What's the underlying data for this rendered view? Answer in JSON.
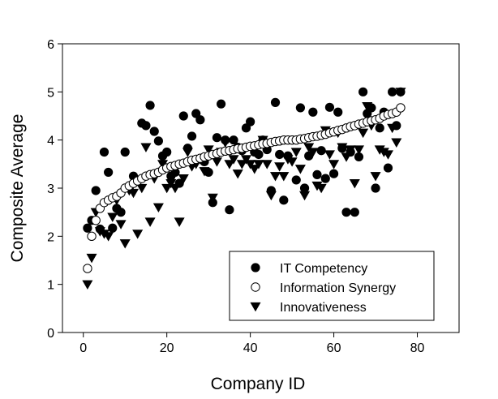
{
  "chart_data": {
    "type": "scatter",
    "title": "",
    "xlabel": "Company ID",
    "ylabel": "Composite Average",
    "xlim": [
      -5,
      90
    ],
    "ylim": [
      0,
      6
    ],
    "x_ticks": [
      0,
      20,
      40,
      60,
      80
    ],
    "y_ticks": [
      0,
      1,
      2,
      3,
      4,
      5,
      6
    ],
    "grid": false,
    "legend_position": "bottom-right",
    "series": [
      {
        "name": "IT Competency",
        "marker": "filled-circle",
        "points": [
          [
            1,
            2.17
          ],
          [
            2,
            2.33
          ],
          [
            3,
            2.95
          ],
          [
            4,
            2.15
          ],
          [
            5,
            3.75
          ],
          [
            6,
            3.33
          ],
          [
            7,
            2.17
          ],
          [
            8,
            2.58
          ],
          [
            9,
            2.5
          ],
          [
            10,
            3.75
          ],
          [
            11,
            3.0
          ],
          [
            12,
            3.25
          ],
          [
            13,
            3.17
          ],
          [
            14,
            4.35
          ],
          [
            15,
            4.3
          ],
          [
            16,
            4.72
          ],
          [
            17,
            4.18
          ],
          [
            18,
            3.98
          ],
          [
            19,
            3.67
          ],
          [
            20,
            3.75
          ],
          [
            21,
            3.25
          ],
          [
            22,
            3.33
          ],
          [
            23,
            3.1
          ],
          [
            24,
            4.5
          ],
          [
            25,
            3.83
          ],
          [
            26,
            4.08
          ],
          [
            27,
            4.55
          ],
          [
            28,
            4.42
          ],
          [
            29,
            3.55
          ],
          [
            30,
            3.33
          ],
          [
            31,
            2.7
          ],
          [
            32,
            4.05
          ],
          [
            33,
            4.75
          ],
          [
            34,
            4.0
          ],
          [
            35,
            2.55
          ],
          [
            36,
            4.0
          ],
          [
            37,
            3.85
          ],
          [
            38,
            3.78
          ],
          [
            39,
            4.25
          ],
          [
            40,
            4.38
          ],
          [
            41,
            3.75
          ],
          [
            42,
            3.7
          ],
          [
            43,
            4.0
          ],
          [
            44,
            3.8
          ],
          [
            45,
            2.95
          ],
          [
            46,
            4.78
          ],
          [
            47,
            3.7
          ],
          [
            48,
            2.75
          ],
          [
            49,
            3.67
          ],
          [
            50,
            4.0
          ],
          [
            51,
            3.17
          ],
          [
            52,
            4.67
          ],
          [
            53,
            3.0
          ],
          [
            54,
            3.67
          ],
          [
            55,
            4.58
          ],
          [
            56,
            3.28
          ],
          [
            57,
            3.78
          ],
          [
            58,
            3.2
          ],
          [
            59,
            4.68
          ],
          [
            60,
            3.3
          ],
          [
            61,
            4.58
          ],
          [
            62,
            3.83
          ],
          [
            63,
            2.5
          ],
          [
            64,
            3.75
          ],
          [
            65,
            2.5
          ],
          [
            66,
            3.65
          ],
          [
            67,
            5.0
          ],
          [
            68,
            4.55
          ],
          [
            69,
            4.67
          ],
          [
            70,
            3.0
          ],
          [
            71,
            4.25
          ],
          [
            72,
            4.58
          ],
          [
            73,
            3.42
          ],
          [
            74,
            5.0
          ],
          [
            75,
            4.3
          ],
          [
            76,
            5.0
          ]
        ]
      },
      {
        "name": "Information Synergy",
        "marker": "open-circle",
        "points": [
          [
            1,
            1.33
          ],
          [
            2,
            2.0
          ],
          [
            3,
            2.33
          ],
          [
            4,
            2.58
          ],
          [
            5,
            2.7
          ],
          [
            6,
            2.75
          ],
          [
            7,
            2.8
          ],
          [
            8,
            2.83
          ],
          [
            9,
            2.9
          ],
          [
            10,
            3.0
          ],
          [
            11,
            3.05
          ],
          [
            12,
            3.1
          ],
          [
            13,
            3.15
          ],
          [
            14,
            3.2
          ],
          [
            15,
            3.25
          ],
          [
            16,
            3.28
          ],
          [
            17,
            3.3
          ],
          [
            18,
            3.33
          ],
          [
            19,
            3.38
          ],
          [
            20,
            3.42
          ],
          [
            21,
            3.45
          ],
          [
            22,
            3.47
          ],
          [
            23,
            3.5
          ],
          [
            24,
            3.52
          ],
          [
            25,
            3.55
          ],
          [
            26,
            3.58
          ],
          [
            27,
            3.6
          ],
          [
            28,
            3.62
          ],
          [
            29,
            3.65
          ],
          [
            30,
            3.67
          ],
          [
            31,
            3.7
          ],
          [
            32,
            3.72
          ],
          [
            33,
            3.75
          ],
          [
            34,
            3.77
          ],
          [
            35,
            3.78
          ],
          [
            36,
            3.8
          ],
          [
            37,
            3.82
          ],
          [
            38,
            3.83
          ],
          [
            39,
            3.85
          ],
          [
            40,
            3.87
          ],
          [
            41,
            3.88
          ],
          [
            42,
            3.9
          ],
          [
            43,
            3.92
          ],
          [
            44,
            3.93
          ],
          [
            45,
            3.95
          ],
          [
            46,
            3.97
          ],
          [
            47,
            3.98
          ],
          [
            48,
            4.0
          ],
          [
            49,
            4.0
          ],
          [
            50,
            4.0
          ],
          [
            51,
            4.0
          ],
          [
            52,
            4.02
          ],
          [
            53,
            4.03
          ],
          [
            54,
            4.05
          ],
          [
            55,
            4.07
          ],
          [
            56,
            4.08
          ],
          [
            57,
            4.1
          ],
          [
            58,
            4.12
          ],
          [
            59,
            4.15
          ],
          [
            60,
            4.17
          ],
          [
            61,
            4.2
          ],
          [
            62,
            4.22
          ],
          [
            63,
            4.25
          ],
          [
            64,
            4.28
          ],
          [
            65,
            4.3
          ],
          [
            66,
            4.33
          ],
          [
            67,
            4.35
          ],
          [
            68,
            4.38
          ],
          [
            69,
            4.4
          ],
          [
            70,
            4.42
          ],
          [
            71,
            4.45
          ],
          [
            72,
            4.5
          ],
          [
            73,
            4.53
          ],
          [
            74,
            4.55
          ],
          [
            75,
            4.58
          ],
          [
            76,
            4.67
          ]
        ]
      },
      {
        "name": "Innovativeness",
        "marker": "filled-triangle-down",
        "points": [
          [
            1,
            1.0
          ],
          [
            2,
            1.55
          ],
          [
            3,
            2.5
          ],
          [
            4,
            2.1
          ],
          [
            5,
            2.05
          ],
          [
            6,
            2.0
          ],
          [
            7,
            2.4
          ],
          [
            8,
            2.75
          ],
          [
            9,
            2.25
          ],
          [
            10,
            1.85
          ],
          [
            11,
            2.95
          ],
          [
            12,
            2.9
          ],
          [
            13,
            2.05
          ],
          [
            14,
            3.0
          ],
          [
            15,
            3.85
          ],
          [
            16,
            2.3
          ],
          [
            17,
            3.2
          ],
          [
            18,
            2.6
          ],
          [
            19,
            3.5
          ],
          [
            20,
            3.0
          ],
          [
            21,
            3.1
          ],
          [
            22,
            3.0
          ],
          [
            23,
            2.3
          ],
          [
            24,
            3.2
          ],
          [
            25,
            3.75
          ],
          [
            26,
            3.45
          ],
          [
            27,
            3.5
          ],
          [
            28,
            3.6
          ],
          [
            29,
            3.35
          ],
          [
            30,
            3.8
          ],
          [
            31,
            2.8
          ],
          [
            32,
            3.55
          ],
          [
            33,
            3.75
          ],
          [
            34,
            3.95
          ],
          [
            35,
            3.5
          ],
          [
            36,
            3.6
          ],
          [
            37,
            3.3
          ],
          [
            38,
            3.5
          ],
          [
            39,
            3.6
          ],
          [
            40,
            3.5
          ],
          [
            41,
            3.4
          ],
          [
            42,
            3.5
          ],
          [
            43,
            4.0
          ],
          [
            44,
            3.5
          ],
          [
            45,
            2.85
          ],
          [
            46,
            3.25
          ],
          [
            47,
            3.45
          ],
          [
            48,
            3.25
          ],
          [
            49,
            3.6
          ],
          [
            50,
            3.55
          ],
          [
            51,
            3.75
          ],
          [
            52,
            3.4
          ],
          [
            53,
            2.85
          ],
          [
            54,
            3.85
          ],
          [
            55,
            3.75
          ],
          [
            56,
            3.05
          ],
          [
            57,
            3.0
          ],
          [
            58,
            4.2
          ],
          [
            59,
            3.7
          ],
          [
            60,
            3.5
          ],
          [
            61,
            4.15
          ],
          [
            62,
            3.85
          ],
          [
            63,
            3.65
          ],
          [
            64,
            3.8
          ],
          [
            65,
            3.1
          ],
          [
            66,
            3.8
          ],
          [
            67,
            4.15
          ],
          [
            68,
            4.7
          ],
          [
            69,
            4.3
          ],
          [
            70,
            3.25
          ],
          [
            71,
            3.8
          ],
          [
            72,
            3.75
          ],
          [
            73,
            3.7
          ],
          [
            74,
            4.25
          ],
          [
            75,
            3.95
          ],
          [
            76,
            5.0
          ]
        ]
      }
    ]
  }
}
